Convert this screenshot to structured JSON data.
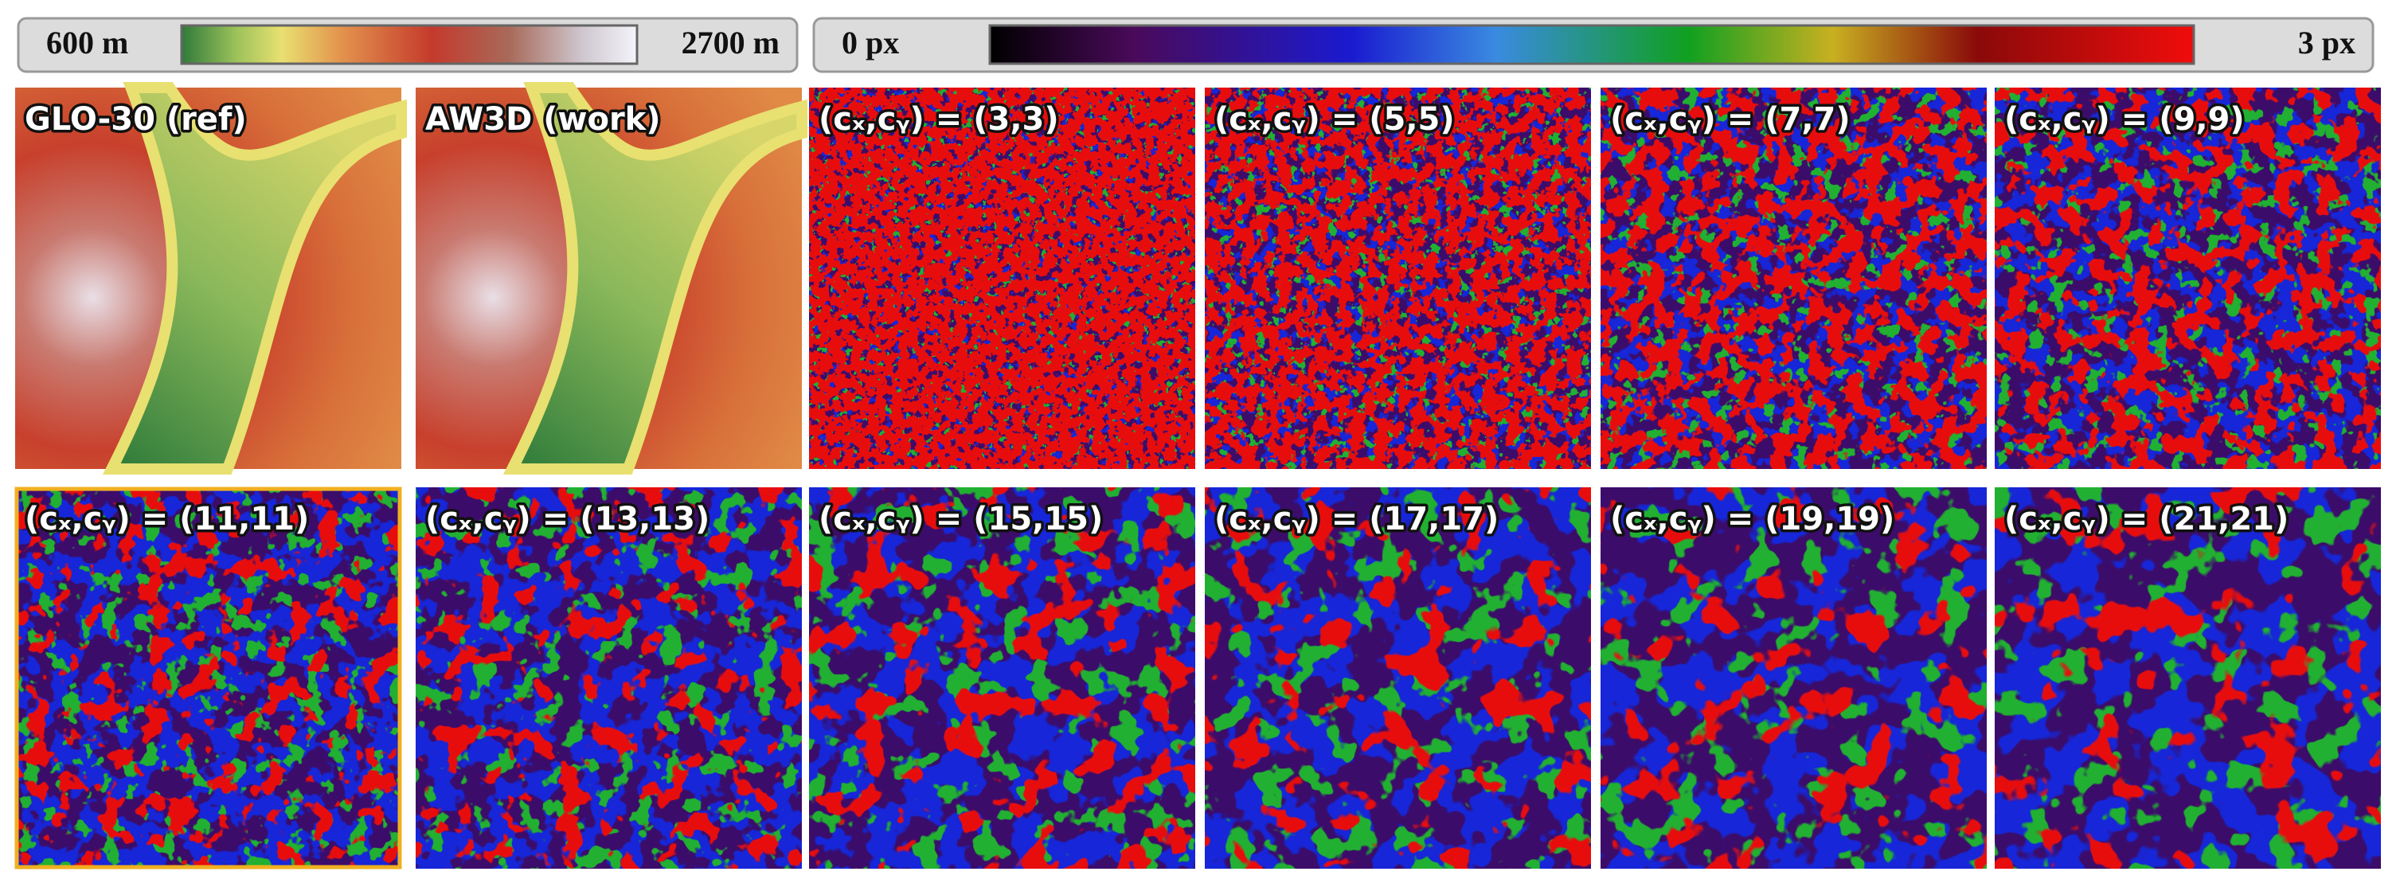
{
  "colorbars": [
    {
      "min_label": "600 m",
      "max_label": "2700 m"
    },
    {
      "min_label": "0 px",
      "max_label": "3 px"
    }
  ],
  "panels": [
    {
      "label": "GLO-30 (ref)"
    },
    {
      "label": "AW3D (work)"
    },
    {
      "label": "(cₓ,cᵧ) = (3,3)"
    },
    {
      "label": "(cₓ,cᵧ) = (5,5)"
    },
    {
      "label": "(cₓ,cᵧ) = (7,7)"
    },
    {
      "label": "(cₓ,cᵧ) = (9,9)"
    },
    {
      "label": "(cₓ,cᵧ) = (11,11)"
    },
    {
      "label": "(cₓ,cᵧ) = (13,13)"
    },
    {
      "label": "(cₓ,cᵧ) = (15,15)"
    },
    {
      "label": "(cₓ,cᵧ) = (17,17)"
    },
    {
      "label": "(cₓ,cᵧ) = (19,19)"
    },
    {
      "label": "(cₓ,cᵧ) = (21,21)"
    }
  ]
}
